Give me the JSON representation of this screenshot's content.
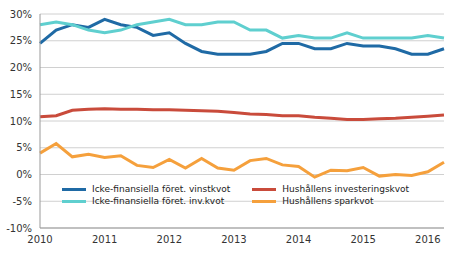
{
  "chart_data": {
    "type": "line",
    "categories": [
      "2010",
      null,
      null,
      null,
      "2011",
      null,
      null,
      null,
      "2012",
      null,
      null,
      null,
      "2013",
      null,
      null,
      null,
      "2014",
      null,
      null,
      null,
      "2015",
      null,
      null,
      null,
      "2016",
      null
    ],
    "series": [
      {
        "name": "Icke-finansiella föret. vinstkvot",
        "color": "#1f6aa5",
        "values": [
          24.5,
          27,
          28,
          27.5,
          29,
          28,
          27.5,
          26,
          26.5,
          24.5,
          23,
          22.5,
          22.5,
          22.5,
          23,
          24.5,
          24.5,
          23.5,
          23.5,
          24.5,
          24,
          24,
          23.5,
          22.5,
          22.5,
          23.5
        ]
      },
      {
        "name": "Hushållens investeringskvot",
        "color": "#c94b3b",
        "values": [
          10.8,
          11,
          12,
          12.2,
          12.3,
          12.2,
          12.2,
          12.1,
          12.1,
          12,
          11.9,
          11.8,
          11.6,
          11.3,
          11.2,
          11,
          11,
          10.7,
          10.5,
          10.3,
          10.3,
          10.4,
          10.5,
          10.7,
          10.9,
          11.1
        ]
      },
      {
        "name": "Icke-finansiella föret. inv.kvot",
        "color": "#5fcfcf",
        "values": [
          28,
          28.5,
          28,
          27,
          26.5,
          27,
          28,
          28.5,
          29,
          28,
          28,
          28.5,
          28.5,
          27,
          27,
          25.5,
          26,
          25.5,
          25.5,
          26.5,
          25.5,
          25.5,
          25.5,
          25.5,
          26,
          25.5
        ]
      },
      {
        "name": "Hushållens sparkvot",
        "color": "#f5a03c",
        "values": [
          4,
          5.8,
          3.3,
          3.8,
          3.2,
          3.5,
          1.7,
          1.3,
          2.8,
          1.2,
          3,
          1.2,
          0.8,
          2.6,
          3,
          1.8,
          1.5,
          -0.5,
          0.8,
          0.7,
          1.3,
          -0.3,
          0,
          -0.2,
          0.5,
          2.3
        ]
      }
    ],
    "ylim": [
      -10,
      30
    ],
    "yticks": [
      {
        "value": -10,
        "label": "-10%"
      },
      {
        "value": -5,
        "label": "-5%"
      },
      {
        "value": 0,
        "label": "0%"
      },
      {
        "value": 5,
        "label": "5%"
      },
      {
        "value": 10,
        "label": "10%"
      },
      {
        "value": 15,
        "label": "15%"
      },
      {
        "value": 20,
        "label": "20%"
      },
      {
        "value": 25,
        "label": "25%"
      },
      {
        "value": 30,
        "label": "30%"
      }
    ],
    "grid": true,
    "legend": "lower left"
  }
}
